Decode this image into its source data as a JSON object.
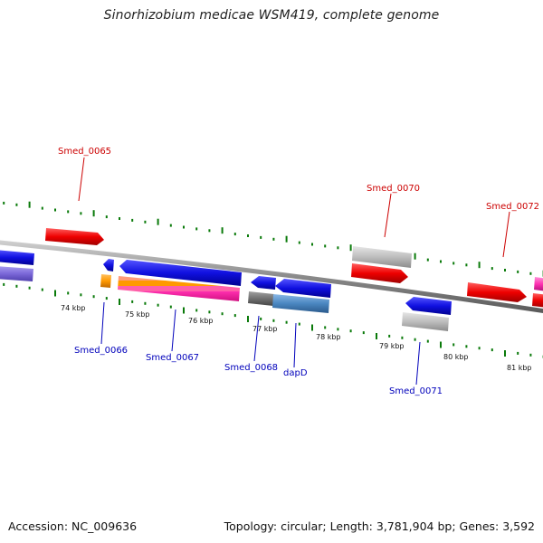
{
  "title": "Sinorhizobium medicae WSM419, complete genome",
  "footer": {
    "accession": "Accession: NC_009636",
    "summary": "Topology: circular; Length: 3,781,904 bp; Genes: 3,592"
  },
  "kbp_labels": [
    "74 kbp",
    "75 kbp",
    "76 kbp",
    "77 kbp",
    "78 kbp",
    "79 kbp",
    "80 kbp",
    "81 kbp"
  ],
  "gene_labels_top": [
    "Smed_0065",
    "Smed_0070",
    "Smed_0072"
  ],
  "gene_labels_bottom": [
    "Smed_0066",
    "Smed_0067",
    "Smed_0068",
    "dapD",
    "Smed_0071"
  ],
  "colors": {
    "forward_label": "#cc0000",
    "reverse_label": "#0000bb",
    "tick": "#0a7a0a",
    "backbone": "#8a8a8a",
    "red": "#ee0000",
    "blue": "#1010e0",
    "gray": "#b8b8b8",
    "purple": "#7b68d8",
    "orange": "#ff9900",
    "magenta": "#ff2fb0",
    "steel": "#4a86c0",
    "dark_gray": "#707070"
  }
}
